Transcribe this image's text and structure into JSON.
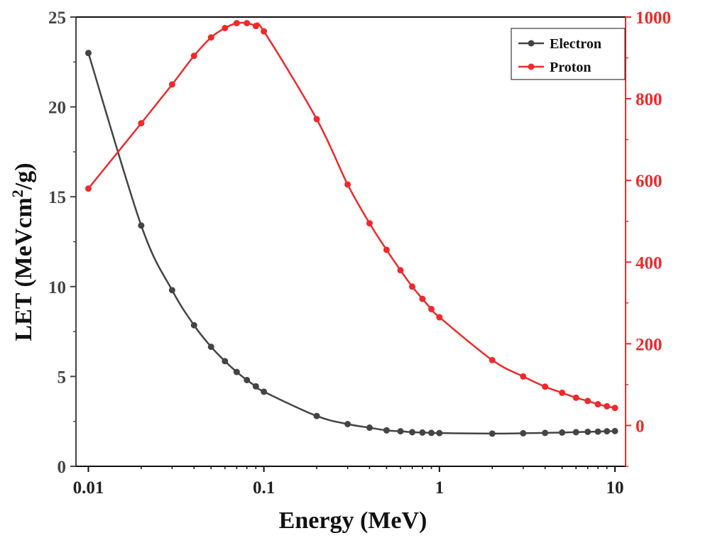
{
  "chart_data": {
    "type": "line",
    "x_scale": "log",
    "xlabel": "Energy (MeV)",
    "ylabel": "LET (MeVcm",
    "ylabel_sup": "2",
    "ylabel_end": "/g)",
    "xlim": [
      0.0085,
      11.5
    ],
    "ylim_left": [
      0,
      25
    ],
    "ylim_right": [
      -100,
      1000
    ],
    "x_ticks": [
      {
        "value": 0.01,
        "label": "0.01"
      },
      {
        "value": 0.1,
        "label": "0.1"
      },
      {
        "value": 1,
        "label": "1"
      },
      {
        "value": 10,
        "label": "10"
      }
    ],
    "y_left_ticks": [
      {
        "value": 0,
        "label": "0"
      },
      {
        "value": 5,
        "label": "5"
      },
      {
        "value": 10,
        "label": "10"
      },
      {
        "value": 15,
        "label": "15"
      },
      {
        "value": 20,
        "label": "20"
      },
      {
        "value": 25,
        "label": "25"
      }
    ],
    "y_right_ticks": [
      {
        "value": 0,
        "label": "0"
      },
      {
        "value": 200,
        "label": "200"
      },
      {
        "value": 400,
        "label": "400"
      },
      {
        "value": 600,
        "label": "600"
      },
      {
        "value": 800,
        "label": "800"
      },
      {
        "value": 1000,
        "label": "1000"
      }
    ],
    "legend_position": "top-right",
    "series": [
      {
        "name": "Electron",
        "axis": "left",
        "color": "#444444",
        "x": [
          0.01,
          0.02,
          0.03,
          0.04,
          0.05,
          0.06,
          0.07,
          0.08,
          0.09,
          0.1,
          0.2,
          0.3,
          0.4,
          0.5,
          0.6,
          0.7,
          0.8,
          0.9,
          1,
          2,
          3,
          4,
          5,
          6,
          7,
          8,
          9,
          10
        ],
        "values": [
          23.0,
          13.4,
          9.8,
          7.85,
          6.65,
          5.85,
          5.25,
          4.8,
          4.45,
          4.15,
          2.8,
          2.35,
          2.15,
          2.0,
          1.95,
          1.9,
          1.88,
          1.86,
          1.85,
          1.82,
          1.84,
          1.86,
          1.88,
          1.9,
          1.92,
          1.93,
          1.95,
          1.96
        ]
      },
      {
        "name": "Proton",
        "axis": "right",
        "color": "#ee2a2a",
        "x": [
          0.01,
          0.02,
          0.03,
          0.04,
          0.05,
          0.06,
          0.07,
          0.08,
          0.09,
          0.1,
          0.2,
          0.3,
          0.4,
          0.5,
          0.6,
          0.7,
          0.8,
          0.9,
          1,
          2,
          3,
          4,
          5,
          6,
          7,
          8,
          9,
          10
        ],
        "values": [
          580,
          740,
          835,
          905,
          950,
          973,
          985,
          985,
          978,
          965,
          750,
          590,
          495,
          430,
          380,
          340,
          310,
          285,
          265,
          160,
          120,
          95,
          80,
          68,
          60,
          52,
          47,
          43
        ]
      }
    ]
  }
}
